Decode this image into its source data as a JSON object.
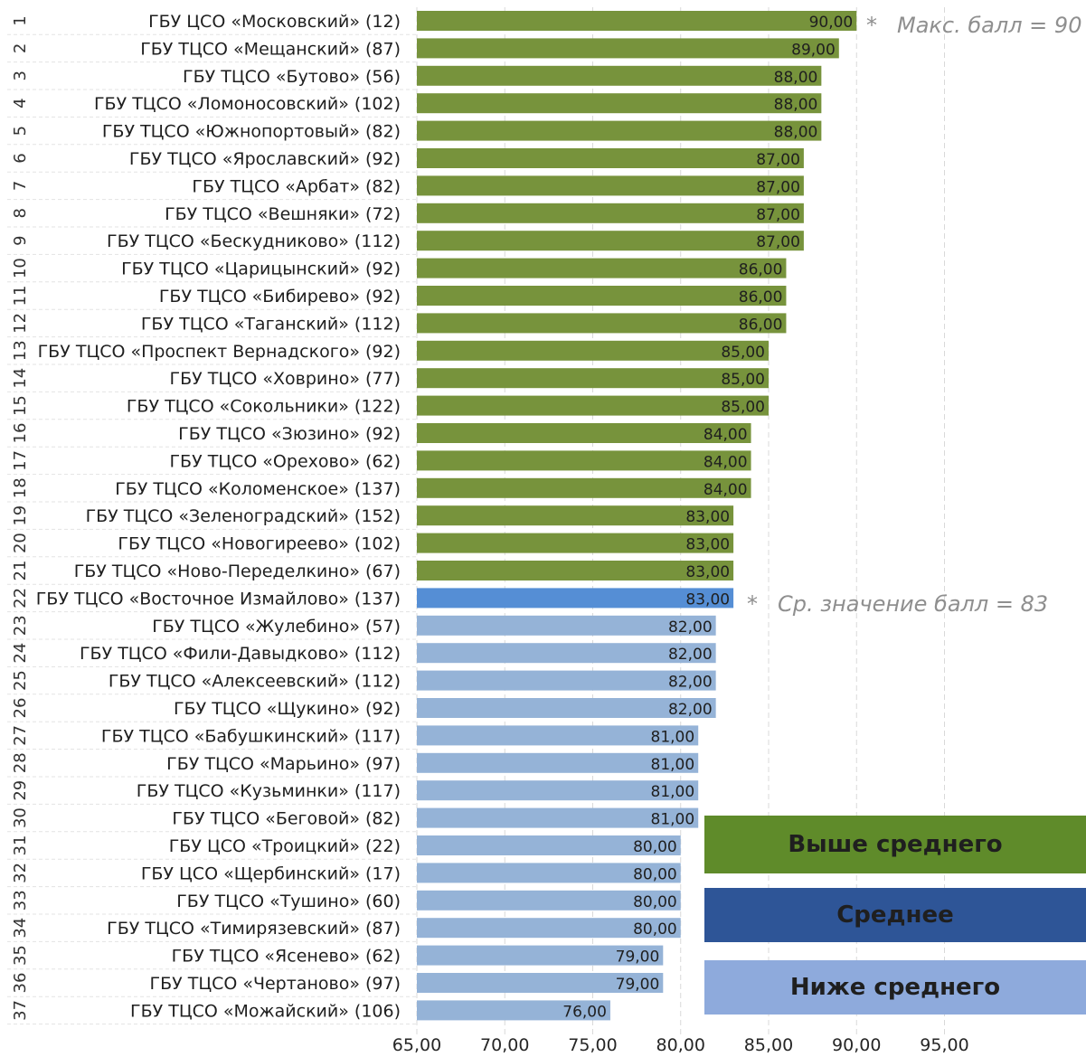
{
  "chart_data": {
    "type": "bar",
    "orientation": "horizontal",
    "xlim": [
      65,
      95
    ],
    "xticks": [
      "65,00",
      "70,00",
      "75,00",
      "80,00",
      "85,00",
      "90,00",
      "95,00"
    ],
    "grid": true,
    "colors": {
      "above": "#77933c",
      "average": "#558ed5",
      "below": "#95b3d7"
    },
    "rows": [
      {
        "rank": "1",
        "label": "ГБУ ЦСО «Московский» (12)",
        "value": 90,
        "value_label": "90,00",
        "group": "above"
      },
      {
        "rank": "2",
        "label": "ГБУ ТЦСО «Мещанский» (87)",
        "value": 89,
        "value_label": "89,00",
        "group": "above"
      },
      {
        "rank": "3",
        "label": "ГБУ ТЦСО «Бутово» (56)",
        "value": 88,
        "value_label": "88,00",
        "group": "above"
      },
      {
        "rank": "4",
        "label": "ГБУ ТЦСО «Ломоносовский» (102)",
        "value": 88,
        "value_label": "88,00",
        "group": "above"
      },
      {
        "rank": "5",
        "label": "ГБУ ТЦСО «Южнопортовый» (82)",
        "value": 88,
        "value_label": "88,00",
        "group": "above"
      },
      {
        "rank": "6",
        "label": "ГБУ ТЦСО «Ярославский» (92)",
        "value": 87,
        "value_label": "87,00",
        "group": "above"
      },
      {
        "rank": "7",
        "label": "ГБУ ТЦСО «Арбат» (82)",
        "value": 87,
        "value_label": "87,00",
        "group": "above"
      },
      {
        "rank": "8",
        "label": "ГБУ ТЦСО «Вешняки» (72)",
        "value": 87,
        "value_label": "87,00",
        "group": "above"
      },
      {
        "rank": "9",
        "label": "ГБУ ТЦСО «Бескудниково» (112)",
        "value": 87,
        "value_label": "87,00",
        "group": "above"
      },
      {
        "rank": "10",
        "label": "ГБУ ТЦСО «Царицынский» (92)",
        "value": 86,
        "value_label": "86,00",
        "group": "above"
      },
      {
        "rank": "11",
        "label": "ГБУ ТЦСО «Бибирево» (92)",
        "value": 86,
        "value_label": "86,00",
        "group": "above"
      },
      {
        "rank": "12",
        "label": "ГБУ ТЦСО «Таганский» (112)",
        "value": 86,
        "value_label": "86,00",
        "group": "above"
      },
      {
        "rank": "13",
        "label": "ГБУ ТЦСО «Проспект Вернадского» (92)",
        "value": 85,
        "value_label": "85,00",
        "group": "above"
      },
      {
        "rank": "14",
        "label": "ГБУ ТЦСО «Ховрино» (77)",
        "value": 85,
        "value_label": "85,00",
        "group": "above"
      },
      {
        "rank": "15",
        "label": "ГБУ ТЦСО «Сокольники» (122)",
        "value": 85,
        "value_label": "85,00",
        "group": "above"
      },
      {
        "rank": "16",
        "label": "ГБУ ТЦСО «Зюзино» (92)",
        "value": 84,
        "value_label": "84,00",
        "group": "above"
      },
      {
        "rank": "17",
        "label": "ГБУ ТЦСО «Орехово» (62)",
        "value": 84,
        "value_label": "84,00",
        "group": "above"
      },
      {
        "rank": "18",
        "label": "ГБУ ТЦСО «Коломенское» (137)",
        "value": 84,
        "value_label": "84,00",
        "group": "above"
      },
      {
        "rank": "19",
        "label": "ГБУ ТЦСО «Зеленоградский» (152)",
        "value": 83,
        "value_label": "83,00",
        "group": "above"
      },
      {
        "rank": "20",
        "label": "ГБУ ТЦСО «Новогиреево» (102)",
        "value": 83,
        "value_label": "83,00",
        "group": "above"
      },
      {
        "rank": "21",
        "label": "ГБУ ТЦСО «Ново-Переделкино» (67)",
        "value": 83,
        "value_label": "83,00",
        "group": "above"
      },
      {
        "rank": "22",
        "label": "ГБУ ТЦСО «Восточное Измайлово» (137)",
        "value": 83,
        "value_label": "83,00",
        "group": "average"
      },
      {
        "rank": "23",
        "label": "ГБУ ТЦСО «Жулебино» (57)",
        "value": 82,
        "value_label": "82,00",
        "group": "below"
      },
      {
        "rank": "24",
        "label": "ГБУ ТЦСО «Фили-Давыдково» (112)",
        "value": 82,
        "value_label": "82,00",
        "group": "below"
      },
      {
        "rank": "25",
        "label": "ГБУ ТЦСО «Алексеевский» (112)",
        "value": 82,
        "value_label": "82,00",
        "group": "below"
      },
      {
        "rank": "26",
        "label": "ГБУ ТЦСО «Щукино» (92)",
        "value": 82,
        "value_label": "82,00",
        "group": "below"
      },
      {
        "rank": "27",
        "label": "ГБУ ТЦСО «Бабушкинский» (117)",
        "value": 81,
        "value_label": "81,00",
        "group": "below"
      },
      {
        "rank": "28",
        "label": "ГБУ ТЦСО «Марьино» (97)",
        "value": 81,
        "value_label": "81,00",
        "group": "below"
      },
      {
        "rank": "29",
        "label": "ГБУ ТЦСО «Кузьминки» (117)",
        "value": 81,
        "value_label": "81,00",
        "group": "below"
      },
      {
        "rank": "30",
        "label": "ГБУ ТЦСО «Беговой» (82)",
        "value": 81,
        "value_label": "81,00",
        "group": "below"
      },
      {
        "rank": "31",
        "label": "ГБУ ЦСО «Троицкий» (22)",
        "value": 80,
        "value_label": "80,00",
        "group": "below"
      },
      {
        "rank": "32",
        "label": "ГБУ ЦСО «Щербинский» (17)",
        "value": 80,
        "value_label": "80,00",
        "group": "below"
      },
      {
        "rank": "33",
        "label": "ГБУ ТЦСО «Тушино» (60)",
        "value": 80,
        "value_label": "80,00",
        "group": "below"
      },
      {
        "rank": "34",
        "label": "ГБУ ТЦСО «Тимирязевский» (87)",
        "value": 80,
        "value_label": "80,00",
        "group": "below"
      },
      {
        "rank": "35",
        "label": "ГБУ ТЦСО «Ясенево» (62)",
        "value": 79,
        "value_label": "79,00",
        "group": "below"
      },
      {
        "rank": "36",
        "label": "ГБУ ТЦСО «Чертаново» (97)",
        "value": 79,
        "value_label": "79,00",
        "group": "below"
      },
      {
        "rank": "37",
        "label": "ГБУ ТЦСО «Можайский» (106)",
        "value": 76,
        "value_label": "76,00",
        "group": "below"
      }
    ],
    "annotations": {
      "max": {
        "star": "*",
        "text": "Макс. балл = 90"
      },
      "avg": {
        "star": "*",
        "text": "Ср. значение балл = 83"
      }
    },
    "legend": [
      {
        "label": "Выше среднего",
        "color": "#5f8b2a"
      },
      {
        "label": "Среднее",
        "color": "#2e5597"
      },
      {
        "label": "Ниже среднего",
        "color": "#8eaadc"
      }
    ]
  }
}
